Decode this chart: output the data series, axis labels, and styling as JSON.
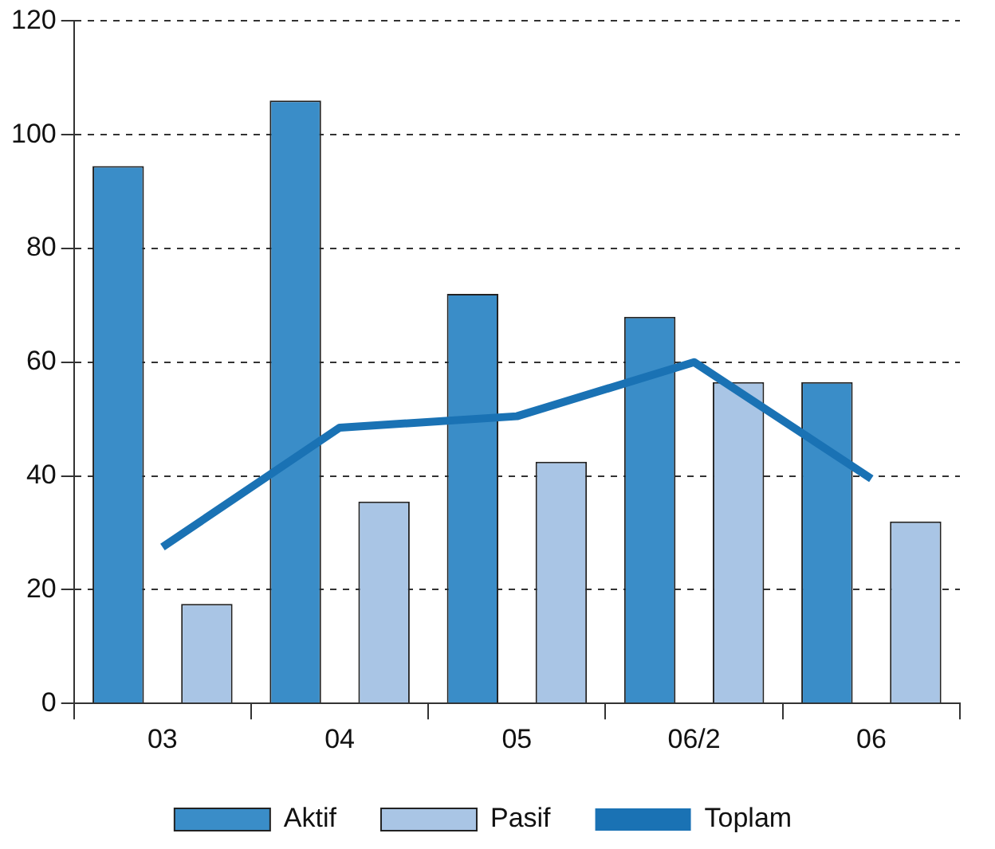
{
  "chart_data": {
    "type": "bar",
    "categories": [
      "03",
      "04",
      "05",
      "06/2",
      "06"
    ],
    "series": [
      {
        "name": "Aktif",
        "color": "#3a8dc8",
        "values": [
          94.5,
          106,
          72,
          68,
          56.5
        ]
      },
      {
        "name": "Pasif",
        "color": "#a9c5e5",
        "values": [
          17.5,
          35.5,
          42.5,
          56.5,
          32
        ]
      },
      {
        "name": "Toplam",
        "type": "line",
        "color": "#1a72b4",
        "values": [
          27.5,
          48.5,
          50.5,
          60,
          39.5
        ]
      }
    ],
    "ylim": [
      0,
      120
    ],
    "yticks": [
      0,
      20,
      40,
      60,
      80,
      100,
      120
    ],
    "grid": "y",
    "legend": "bottom",
    "marker": "none"
  }
}
